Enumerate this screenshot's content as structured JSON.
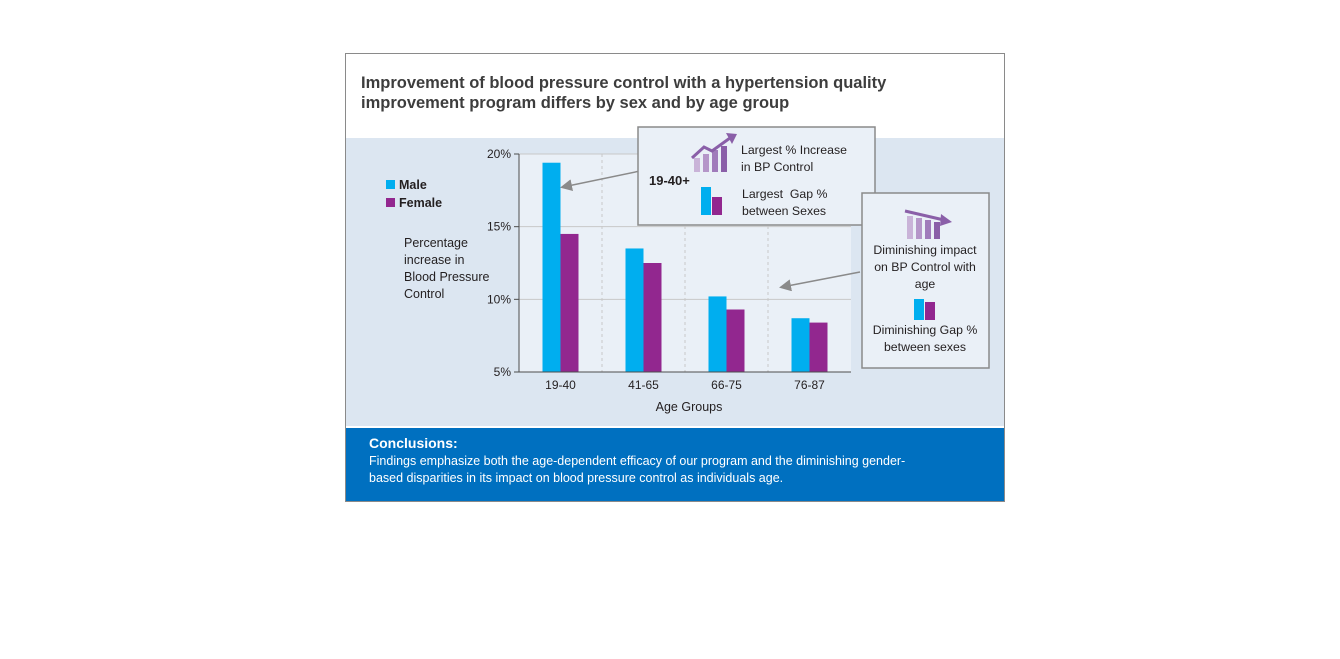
{
  "title": "Improvement of blood pressure control with a hypertension quality improvement program differs by sex and by age group",
  "colors": {
    "male": "#00aeef",
    "female": "#92278f",
    "panel": "#dce6f1",
    "footer": "#0070c0"
  },
  "chart_data": {
    "type": "bar",
    "categories": [
      "19-40",
      "41-65",
      "66-75",
      "76-87"
    ],
    "series": [
      {
        "name": "Male",
        "values": [
          19.4,
          13.5,
          10.2,
          8.7
        ]
      },
      {
        "name": "Female",
        "values": [
          14.5,
          12.5,
          9.3,
          8.4
        ]
      }
    ],
    "xlabel": "Age Groups",
    "ylabel": "Percentage increase in Blood Pressure Control",
    "ylim": [
      5,
      20
    ],
    "yticks": [
      5,
      10,
      15,
      20
    ],
    "ytick_labels": [
      "5%",
      "10%",
      "15%",
      "20%"
    ],
    "grid": true,
    "legend": "left"
  },
  "callouts": {
    "first": {
      "group": "19-40+",
      "increase_line1": "Largest % Increase",
      "increase_line2": "in BP Control",
      "gap_line1": "Largest  Gap %",
      "gap_line2": "between Sexes",
      "icon_increase": "rising-bars-arrow-icon",
      "icon_gap": "gap-bars-icon"
    },
    "second": {
      "impact_line1": "Diminishing impact",
      "impact_line2": "on BP Control with",
      "impact_line3": "age",
      "gap_line1": "Diminishing Gap %",
      "gap_line2": "between sexes",
      "icon_impact": "falling-bars-arrow-icon",
      "icon_gap": "gap-bars-icon"
    }
  },
  "conclusions": {
    "heading": "Conclusions:",
    "text": "Findings emphasize both the age-dependent efficacy of our program and the diminishing gender-based disparities in its impact on blood pressure control as individuals age."
  }
}
